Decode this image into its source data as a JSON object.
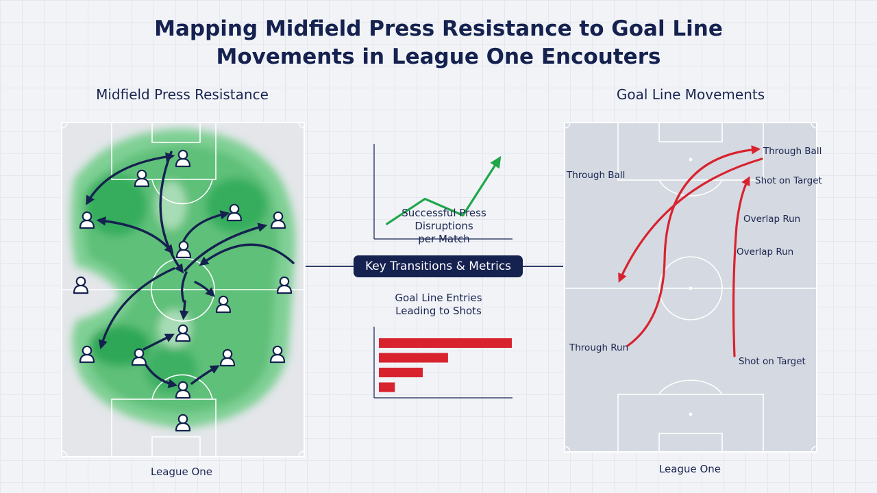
{
  "title": {
    "line1": "Mapping Midfield Press Resistance to Goal Line",
    "line2": "Movements in League One Encouters"
  },
  "left_panel": {
    "title": "Midfield Press Resistance",
    "caption": "League One"
  },
  "right_panel": {
    "title": "Goal Line Movements",
    "caption": "League One",
    "annotations": {
      "through_ball_top": "Through Ball",
      "through_ball_left": "Through Ball",
      "shot_on_target_top": "Shot on Target",
      "overlap_run_1": "Overlap Run",
      "overlap_run_2": "Overlap Run",
      "through_run": "Through Run",
      "shot_on_target_bottom": "Shot on Target"
    }
  },
  "center": {
    "pill_label": "Key Transitions & Metrics",
    "press_chart_label_line1": "Successful Press Disruptions",
    "press_chart_label_line2": "per Match",
    "entries_chart_label_line1": "Goal Line Entries",
    "entries_chart_label_line2": "Leading to Shots"
  },
  "colors": {
    "navy": "#15214f",
    "green": "#1fa64b",
    "red": "#d8232f",
    "pitch_left": "#e4e6ea",
    "pitch_right": "#d5d9e1"
  },
  "chart_data": [
    {
      "type": "line",
      "title": "",
      "xlabel": "",
      "ylabel": "",
      "x": [
        1,
        2,
        3,
        4
      ],
      "values": [
        2,
        5.5,
        3.2,
        11.5
      ],
      "xlim": [
        0.7,
        4.3
      ],
      "ylim": [
        0,
        13
      ],
      "color": "#1fa64b"
    },
    {
      "type": "bar",
      "orientation": "horizontal",
      "title": "",
      "xlabel": "",
      "ylabel": "",
      "values": [
        100,
        52,
        33,
        12
      ],
      "xlim": [
        0,
        100
      ],
      "color": "#d8232f"
    }
  ]
}
